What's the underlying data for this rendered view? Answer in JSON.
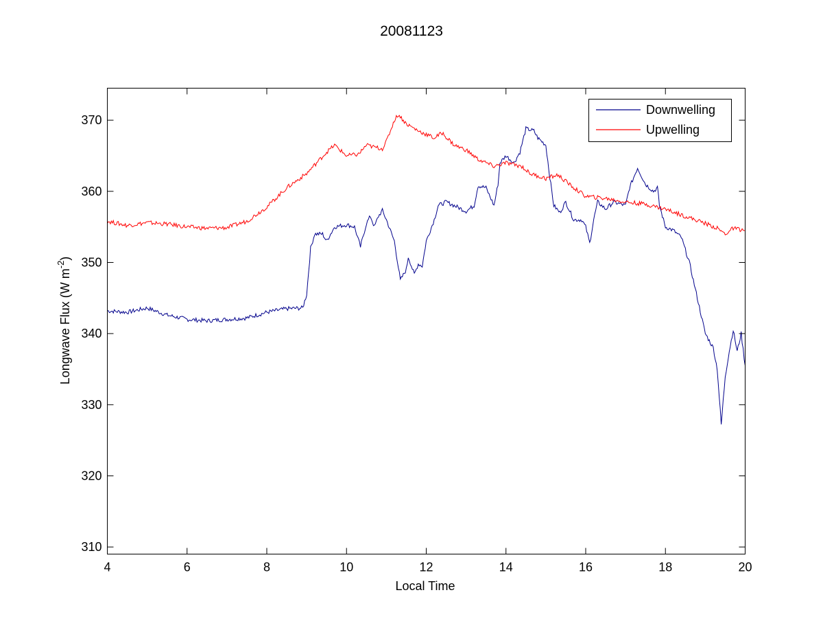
{
  "chart_data": {
    "type": "line",
    "title": "20081123",
    "xlabel": "Local Time",
    "ylabel": "Longwave Flux (W m",
    "ylabel_sup": "-2",
    "ylabel_close": ")",
    "xlim": [
      4,
      20
    ],
    "ylim": [
      309,
      374.5
    ],
    "xticks": [
      "4",
      "6",
      "8",
      "10",
      "12",
      "14",
      "16",
      "18",
      "20"
    ],
    "yticks": [
      "310",
      "320",
      "330",
      "340",
      "350",
      "360",
      "370"
    ],
    "grid": false,
    "legend_position": "top-right",
    "series": [
      {
        "name": "Downwelling",
        "color": "#00008b",
        "points": [
          [
            4.0,
            343.2
          ],
          [
            4.5,
            343.0
          ],
          [
            5.0,
            343.6
          ],
          [
            5.5,
            342.6
          ],
          [
            6.0,
            342.0
          ],
          [
            6.5,
            341.8
          ],
          [
            7.0,
            342.0
          ],
          [
            7.5,
            342.2
          ],
          [
            8.0,
            343.0
          ],
          [
            8.5,
            343.5
          ],
          [
            8.9,
            343.6
          ],
          [
            9.0,
            345.5
          ],
          [
            9.1,
            352.0
          ],
          [
            9.2,
            354.0
          ],
          [
            9.4,
            354.0
          ],
          [
            9.5,
            353.0
          ],
          [
            9.7,
            355.0
          ],
          [
            10.0,
            355.3
          ],
          [
            10.2,
            355.0
          ],
          [
            10.35,
            352.2
          ],
          [
            10.5,
            355.5
          ],
          [
            10.6,
            356.5
          ],
          [
            10.7,
            355.0
          ],
          [
            10.8,
            356.5
          ],
          [
            10.9,
            357.3
          ],
          [
            11.0,
            356.0
          ],
          [
            11.2,
            353.0
          ],
          [
            11.35,
            347.5
          ],
          [
            11.5,
            349.0
          ],
          [
            11.55,
            350.8
          ],
          [
            11.7,
            348.3
          ],
          [
            11.8,
            349.8
          ],
          [
            11.9,
            349.5
          ],
          [
            12.0,
            353.0
          ],
          [
            12.2,
            356.0
          ],
          [
            12.3,
            358.0
          ],
          [
            12.5,
            358.5
          ],
          [
            12.7,
            358.0
          ],
          [
            13.0,
            357.2
          ],
          [
            13.2,
            358.0
          ],
          [
            13.3,
            360.8
          ],
          [
            13.5,
            360.5
          ],
          [
            13.7,
            358.0
          ],
          [
            13.8,
            361.0
          ],
          [
            13.85,
            364.0
          ],
          [
            14.0,
            365.0
          ],
          [
            14.2,
            364.0
          ],
          [
            14.35,
            365.5
          ],
          [
            14.5,
            368.8
          ],
          [
            14.7,
            368.5
          ],
          [
            14.8,
            367.5
          ],
          [
            15.0,
            366.5
          ],
          [
            15.1,
            362.0
          ],
          [
            15.2,
            358.0
          ],
          [
            15.35,
            357.0
          ],
          [
            15.5,
            358.5
          ],
          [
            15.7,
            356.0
          ],
          [
            15.9,
            356.0
          ],
          [
            16.0,
            355.0
          ],
          [
            16.1,
            352.7
          ],
          [
            16.2,
            356.0
          ],
          [
            16.3,
            358.5
          ],
          [
            16.5,
            357.5
          ],
          [
            16.7,
            358.5
          ],
          [
            17.0,
            358.0
          ],
          [
            17.1,
            360.5
          ],
          [
            17.3,
            363.3
          ],
          [
            17.5,
            361.0
          ],
          [
            17.7,
            360.0
          ],
          [
            17.8,
            360.5
          ],
          [
            17.85,
            358.0
          ],
          [
            18.0,
            355.0
          ],
          [
            18.2,
            354.5
          ],
          [
            18.4,
            353.5
          ],
          [
            18.6,
            350.0
          ],
          [
            18.8,
            345.0
          ],
          [
            19.0,
            340.0
          ],
          [
            19.2,
            338.0
          ],
          [
            19.3,
            335.0
          ],
          [
            19.4,
            327.2
          ],
          [
            19.5,
            334.0
          ],
          [
            19.6,
            337.5
          ],
          [
            19.7,
            340.5
          ],
          [
            19.8,
            337.5
          ],
          [
            19.9,
            340.0
          ],
          [
            20.0,
            335.5
          ]
        ]
      },
      {
        "name": "Upwelling",
        "color": "#ff0000",
        "points": [
          [
            4.0,
            355.8
          ],
          [
            4.5,
            355.2
          ],
          [
            5.0,
            355.6
          ],
          [
            5.5,
            355.4
          ],
          [
            6.0,
            355.0
          ],
          [
            6.5,
            354.8
          ],
          [
            7.0,
            354.9
          ],
          [
            7.5,
            355.8
          ],
          [
            8.0,
            357.8
          ],
          [
            8.5,
            360.5
          ],
          [
            9.0,
            362.5
          ],
          [
            9.5,
            365.5
          ],
          [
            9.7,
            366.5
          ],
          [
            10.0,
            365.0
          ],
          [
            10.3,
            365.2
          ],
          [
            10.5,
            366.5
          ],
          [
            10.7,
            366.2
          ],
          [
            10.9,
            366.0
          ],
          [
            11.0,
            367.0
          ],
          [
            11.2,
            370.0
          ],
          [
            11.3,
            370.8
          ],
          [
            11.5,
            369.5
          ],
          [
            11.8,
            368.5
          ],
          [
            12.0,
            368.0
          ],
          [
            12.2,
            367.5
          ],
          [
            12.4,
            368.2
          ],
          [
            12.7,
            366.5
          ],
          [
            13.0,
            365.8
          ],
          [
            13.3,
            364.5
          ],
          [
            13.7,
            363.5
          ],
          [
            14.0,
            364.0
          ],
          [
            14.4,
            363.5
          ],
          [
            14.6,
            362.5
          ],
          [
            15.0,
            361.8
          ],
          [
            15.3,
            362.3
          ],
          [
            15.7,
            360.5
          ],
          [
            16.0,
            359.3
          ],
          [
            16.5,
            359.0
          ],
          [
            17.0,
            358.5
          ],
          [
            17.5,
            358.2
          ],
          [
            18.0,
            357.5
          ],
          [
            18.5,
            356.5
          ],
          [
            19.0,
            355.5
          ],
          [
            19.3,
            354.8
          ],
          [
            19.5,
            354.0
          ],
          [
            19.7,
            354.8
          ],
          [
            20.0,
            354.5
          ]
        ]
      }
    ]
  }
}
